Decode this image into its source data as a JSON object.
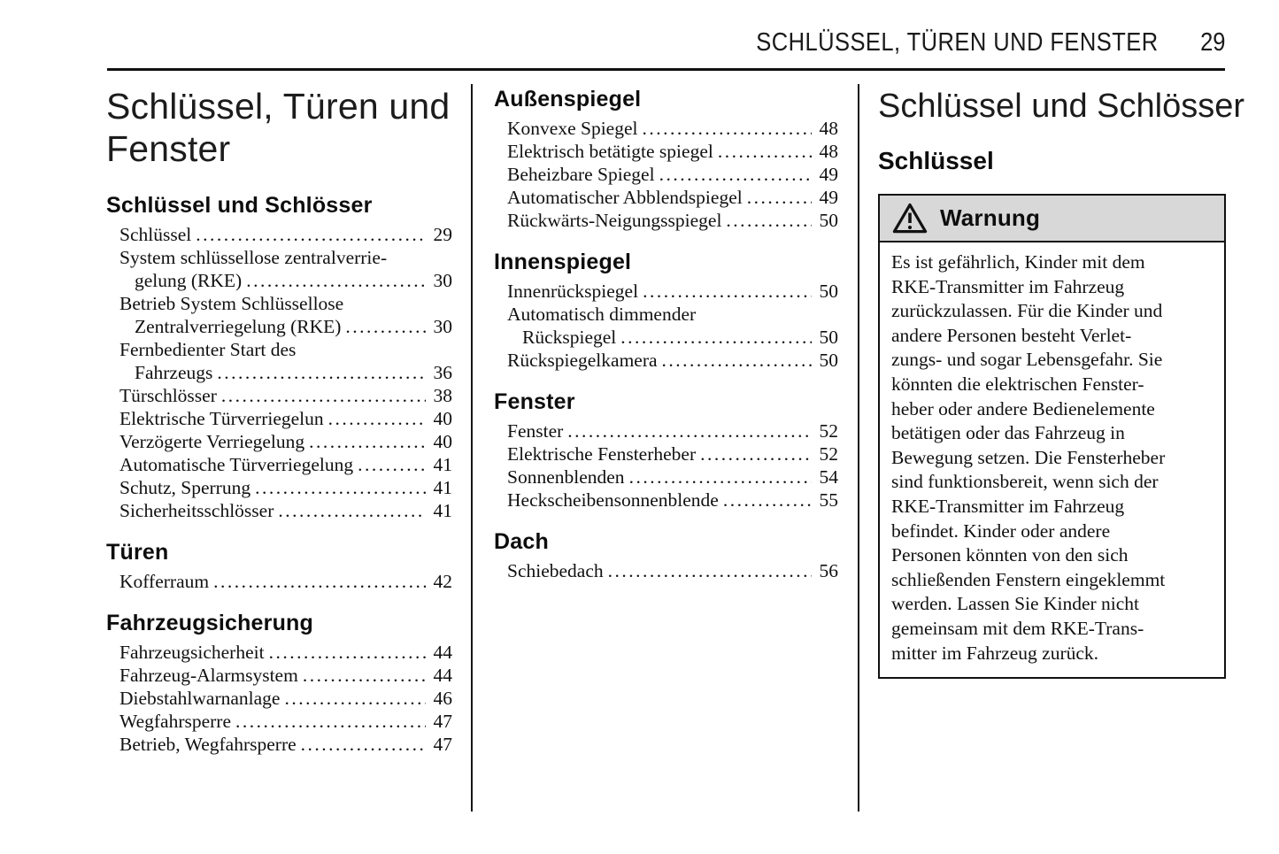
{
  "running_header": {
    "title": "SCHLÜSSEL, TÜREN UND FENSTER",
    "page_number": "29"
  },
  "toc": {
    "columns": [
      {
        "title": "Schlüssel, Türen und\nFenster",
        "sections": [
          {
            "heading": "Schlüssel und Schlösser",
            "entries": [
              {
                "lines": [
                  "Schlüssel"
                ],
                "page": "29"
              },
              {
                "lines": [
                  "System schlüssellose zentralverrie-",
                  "gelung (RKE)"
                ],
                "page": "30"
              },
              {
                "lines": [
                  "Betrieb System Schlüssellose",
                  "Zentralverriegelung (RKE)"
                ],
                "page": "30"
              },
              {
                "lines": [
                  "Fernbedienter Start des",
                  "Fahrzeugs"
                ],
                "page": "36"
              },
              {
                "lines": [
                  "Türschlösser"
                ],
                "page": "38"
              },
              {
                "lines": [
                  "Elektrische Türverriegelun"
                ],
                "page": "40"
              },
              {
                "lines": [
                  "Verzögerte Verriegelung"
                ],
                "page": "40"
              },
              {
                "lines": [
                  "Automatische Türverriegelung"
                ],
                "page": "41"
              },
              {
                "lines": [
                  "Schutz, Sperrung"
                ],
                "page": "41"
              },
              {
                "lines": [
                  "Sicherheitsschlösser"
                ],
                "page": "41"
              }
            ]
          },
          {
            "heading": "Türen",
            "entries": [
              {
                "lines": [
                  "Kofferraum"
                ],
                "page": "42"
              }
            ]
          },
          {
            "heading": "Fahrzeugsicherung",
            "entries": [
              {
                "lines": [
                  "Fahrzeugsicherheit"
                ],
                "page": "44"
              },
              {
                "lines": [
                  "Fahrzeug-Alarmsystem"
                ],
                "page": "44"
              },
              {
                "lines": [
                  "Diebstahlwarnanlage"
                ],
                "page": "46"
              },
              {
                "lines": [
                  "Wegfahrsperre"
                ],
                "page": "47"
              },
              {
                "lines": [
                  "Betrieb, Wegfahrsperre"
                ],
                "page": "47"
              }
            ]
          }
        ]
      },
      {
        "title": "",
        "sections": [
          {
            "heading": "Außenspiegel",
            "entries": [
              {
                "lines": [
                  "Konvexe Spiegel"
                ],
                "page": "48"
              },
              {
                "lines": [
                  "Elektrisch betätigte spiegel"
                ],
                "page": "48"
              },
              {
                "lines": [
                  "Beheizbare Spiegel"
                ],
                "page": "49"
              },
              {
                "lines": [
                  "Automatischer Abblendspiegel"
                ],
                "page": "49"
              },
              {
                "lines": [
                  "Rückwärts-Neigungsspiegel"
                ],
                "page": "50"
              }
            ]
          },
          {
            "heading": "Innenspiegel",
            "entries": [
              {
                "lines": [
                  "Innenrückspiegel"
                ],
                "page": "50"
              },
              {
                "lines": [
                  "Automatisch dimmender",
                  "Rückspiegel"
                ],
                "page": "50"
              },
              {
                "lines": [
                  "Rückspiegelkamera"
                ],
                "page": "50"
              }
            ]
          },
          {
            "heading": "Fenster",
            "entries": [
              {
                "lines": [
                  "Fenster"
                ],
                "page": "52"
              },
              {
                "lines": [
                  "Elektrische Fensterheber"
                ],
                "page": "52"
              },
              {
                "lines": [
                  "Sonnenblenden"
                ],
                "page": "54"
              },
              {
                "lines": [
                  "Heckscheibensonnenblende"
                ],
                "page": "55"
              }
            ]
          },
          {
            "heading": "Dach",
            "entries": [
              {
                "lines": [
                  "Schiebedach"
                ],
                "page": "56"
              }
            ]
          }
        ]
      }
    ]
  },
  "article": {
    "title": "Schlüssel und Schlösser",
    "subheading": "Schlüssel",
    "warning": {
      "label": "Warnung",
      "icon": "warning-triangle-icon",
      "header_bg": "#d8d8d8",
      "body": "Es ist gefährlich, Kinder mit dem\nRKE-Transmitter im Fahrzeug\nzurückzulassen. Für die Kinder und\nandere Personen besteht Verlet-\nzungs- und sogar Lebensgefahr. Sie\nkönnten die elektrischen Fenster-\nheber oder andere Bedienelemente\nbetätigen oder das Fahrzeug in\nBewegung setzen. Die Fensterheber\nsind funktionsbereit, wenn sich der\nRKE-Transmitter im Fahrzeug\nbefindet. Kinder oder andere\nPersonen könnten von den sich\nschließenden Fenstern eingeklemmt\nwerden. Lassen Sie Kinder nicht\ngemeinsam mit dem RKE-Trans-\nmitter im Fahrzeug zurück."
    }
  }
}
